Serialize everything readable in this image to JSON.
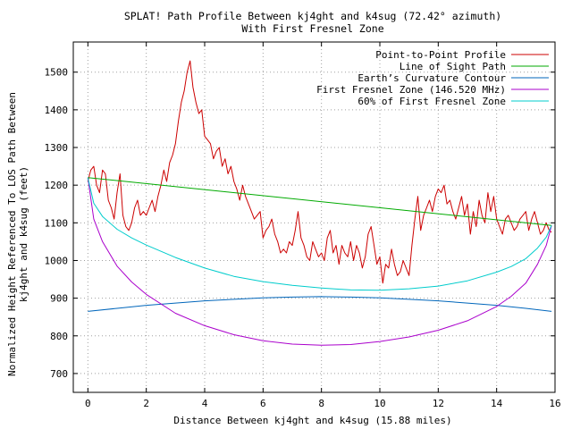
{
  "chart_data": {
    "type": "line",
    "title": "SPLAT! Path Profile Between kj4ght and k4sug (72.42° azimuth)",
    "subtitle": "With First Fresnel Zone",
    "xlabel": "Distance Between kj4ght and k4sug (15.88 miles)",
    "ylabel_line1": "Normalized Height Referenced To LOS Path Between",
    "ylabel_line2": "kj4ght and k4sug (feet)",
    "xlim": [
      -0.5,
      16
    ],
    "ylim": [
      650,
      1580
    ],
    "x_ticks": [
      0,
      2,
      4,
      6,
      8,
      10,
      12,
      14,
      16
    ],
    "x_tick_labels": [
      "0",
      "2",
      "4",
      "6",
      "8",
      "10",
      "12",
      "14",
      "16"
    ],
    "y_ticks": [
      700,
      800,
      900,
      1000,
      1100,
      1200,
      1300,
      1400,
      1500
    ],
    "y_tick_labels": [
      "700",
      "800",
      "900",
      "1000",
      "1100",
      "1200",
      "1300",
      "1400",
      "1500"
    ],
    "grid": true,
    "legend_position": "top-right",
    "series": [
      {
        "name": "Point-to-Point Profile",
        "color": "#cc0000",
        "x": [
          0,
          0.1,
          0.2,
          0.3,
          0.4,
          0.5,
          0.6,
          0.7,
          0.8,
          0.9,
          1.0,
          1.1,
          1.2,
          1.3,
          1.4,
          1.5,
          1.6,
          1.7,
          1.8,
          1.9,
          2.0,
          2.1,
          2.2,
          2.3,
          2.4,
          2.5,
          2.6,
          2.7,
          2.8,
          2.9,
          3.0,
          3.1,
          3.2,
          3.3,
          3.4,
          3.5,
          3.6,
          3.7,
          3.8,
          3.9,
          4.0,
          4.1,
          4.2,
          4.3,
          4.4,
          4.5,
          4.6,
          4.7,
          4.8,
          4.9,
          5.0,
          5.1,
          5.2,
          5.3,
          5.4,
          5.5,
          5.6,
          5.7,
          5.8,
          5.9,
          6.0,
          6.1,
          6.2,
          6.3,
          6.4,
          6.5,
          6.6,
          6.7,
          6.8,
          6.9,
          7.0,
          7.1,
          7.2,
          7.3,
          7.4,
          7.5,
          7.6,
          7.7,
          7.8,
          7.9,
          8.0,
          8.1,
          8.2,
          8.3,
          8.4,
          8.5,
          8.6,
          8.7,
          8.8,
          8.9,
          9.0,
          9.1,
          9.2,
          9.3,
          9.4,
          9.5,
          9.6,
          9.7,
          9.8,
          9.9,
          10.0,
          10.1,
          10.2,
          10.3,
          10.4,
          10.5,
          10.6,
          10.7,
          10.8,
          10.9,
          11.0,
          11.1,
          11.2,
          11.3,
          11.4,
          11.5,
          11.6,
          11.7,
          11.8,
          11.9,
          12.0,
          12.1,
          12.2,
          12.3,
          12.4,
          12.5,
          12.6,
          12.7,
          12.8,
          12.9,
          13.0,
          13.1,
          13.2,
          13.3,
          13.4,
          13.5,
          13.6,
          13.7,
          13.8,
          13.9,
          14.0,
          14.1,
          14.2,
          14.3,
          14.4,
          14.5,
          14.6,
          14.7,
          14.8,
          14.9,
          15.0,
          15.1,
          15.2,
          15.3,
          15.4,
          15.5,
          15.6,
          15.7,
          15.8,
          15.88
        ],
        "y": [
          1210,
          1240,
          1250,
          1200,
          1180,
          1240,
          1230,
          1160,
          1140,
          1110,
          1180,
          1230,
          1120,
          1090,
          1080,
          1100,
          1140,
          1160,
          1120,
          1130,
          1120,
          1140,
          1160,
          1130,
          1170,
          1200,
          1240,
          1210,
          1260,
          1280,
          1310,
          1370,
          1420,
          1450,
          1500,
          1530,
          1460,
          1420,
          1390,
          1400,
          1330,
          1320,
          1310,
          1270,
          1290,
          1300,
          1250,
          1270,
          1230,
          1250,
          1210,
          1190,
          1160,
          1200,
          1170,
          1150,
          1130,
          1110,
          1120,
          1130,
          1060,
          1080,
          1090,
          1110,
          1070,
          1050,
          1020,
          1030,
          1020,
          1050,
          1040,
          1080,
          1130,
          1060,
          1040,
          1010,
          1000,
          1050,
          1030,
          1010,
          1020,
          1000,
          1060,
          1080,
          1020,
          1040,
          990,
          1040,
          1020,
          1010,
          1050,
          1000,
          1040,
          1020,
          980,
          1010,
          1070,
          1090,
          1040,
          990,
          1010,
          940,
          990,
          980,
          1030,
          990,
          960,
          970,
          1000,
          980,
          960,
          1040,
          1110,
          1170,
          1080,
          1120,
          1140,
          1160,
          1130,
          1170,
          1190,
          1180,
          1200,
          1150,
          1160,
          1130,
          1110,
          1140,
          1170,
          1120,
          1150,
          1070,
          1130,
          1090,
          1160,
          1120,
          1100,
          1180,
          1130,
          1170,
          1110,
          1090,
          1070,
          1110,
          1120,
          1100,
          1080,
          1090,
          1110,
          1120,
          1130,
          1080,
          1110,
          1130,
          1100,
          1070,
          1080,
          1100,
          1080,
          1075
        ]
      },
      {
        "name": "Line of Sight Path",
        "color": "#00aa00",
        "x": [
          0,
          15.88
        ],
        "y": [
          1220,
          1093
        ]
      },
      {
        "name": "Earth’s Curvature Contour",
        "color": "#0066bb",
        "x": [
          0,
          1,
          2,
          3,
          4,
          5,
          6,
          7,
          7.94,
          9,
          10,
          11,
          12,
          13,
          14,
          15,
          15.88
        ],
        "y": [
          865,
          873,
          881,
          887,
          893,
          897,
          901,
          903,
          904,
          903,
          901,
          897,
          893,
          887,
          881,
          873,
          865
        ]
      },
      {
        "name": "First Fresnel Zone (146.520 MHz)",
        "color": "#aa00cc",
        "x": [
          0,
          0.2,
          0.5,
          1.0,
          1.5,
          2.0,
          3.0,
          4.0,
          5.0,
          6.0,
          7.0,
          8.0,
          9.0,
          10.0,
          11.0,
          12.0,
          13.0,
          14.0,
          14.5,
          15.0,
          15.4,
          15.7,
          15.88
        ],
        "y": [
          1220,
          1110,
          1050,
          985,
          943,
          910,
          860,
          827,
          803,
          787,
          778,
          775,
          777,
          785,
          797,
          815,
          840,
          878,
          905,
          940,
          990,
          1040,
          1093
        ]
      },
      {
        "name": "60% of First Fresnel Zone",
        "color": "#00cccc",
        "x": [
          0,
          0.2,
          0.5,
          1.0,
          1.5,
          2.0,
          3.0,
          4.0,
          5.0,
          6.0,
          7.0,
          8.0,
          9.0,
          10.0,
          11.0,
          12.0,
          13.0,
          14.0,
          14.5,
          15.0,
          15.4,
          15.7,
          15.88
        ],
        "y": [
          1220,
          1152,
          1117,
          1083,
          1060,
          1041,
          1008,
          980,
          958,
          944,
          934,
          927,
          922,
          921,
          925,
          932,
          946,
          969,
          984,
          1005,
          1033,
          1062,
          1093
        ]
      }
    ]
  }
}
